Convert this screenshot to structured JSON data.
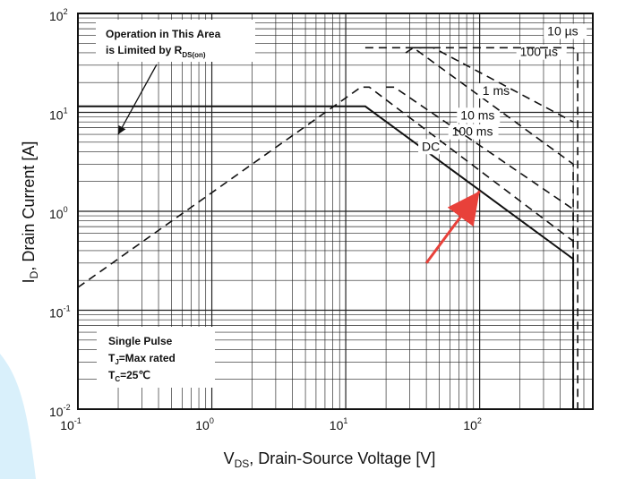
{
  "chart_data": {
    "type": "line",
    "title": "",
    "xlabel": {
      "prefix": "V",
      "sub": "DS",
      "suffix": ", Drain-Source Voltage [V]"
    },
    "ylabel": {
      "prefix": "I",
      "sub": "D",
      "suffix": ", Drain Current [A]"
    },
    "x_scale": "log",
    "y_scale": "log",
    "xlim": [
      0.1,
      700
    ],
    "ylim": [
      0.01,
      100
    ],
    "grid": true,
    "x_ticks": [
      {
        "value": 0.1,
        "base": "10",
        "exp": "-1"
      },
      {
        "value": 1,
        "base": "10",
        "exp": "0"
      },
      {
        "value": 10,
        "base": "10",
        "exp": "1"
      },
      {
        "value": 100,
        "base": "10",
        "exp": "2"
      }
    ],
    "y_ticks": [
      {
        "value": 0.01,
        "base": "10",
        "exp": "-2"
      },
      {
        "value": 0.1,
        "base": "10",
        "exp": "-1"
      },
      {
        "value": 1,
        "base": "10",
        "exp": "0"
      },
      {
        "value": 10,
        "base": "10",
        "exp": "1"
      },
      {
        "value": 100,
        "base": "10",
        "exp": "2"
      }
    ],
    "series": [
      {
        "name": "DC",
        "style": "solid",
        "points": [
          [
            0.1,
            11.5
          ],
          [
            14,
            11.5
          ],
          [
            500,
            0.33
          ],
          [
            500,
            0.01
          ]
        ],
        "label_at": [
          37,
          4.1
        ]
      },
      {
        "name": "100 ms",
        "style": "dashed",
        "points": [
          [
            0.1,
            0.17
          ],
          [
            13,
            18
          ],
          [
            15,
            18
          ],
          [
            500,
            0.5
          ]
        ],
        "label_at": [
          62,
          5.8
        ]
      },
      {
        "name": "10 ms",
        "style": "dashed",
        "points": [
          [
            20,
            18
          ],
          [
            23,
            18
          ],
          [
            500,
            1.05
          ],
          [
            500,
            0.01
          ]
        ],
        "label_at": [
          72,
          8.5
        ]
      },
      {
        "name": "1 ms",
        "style": "dashed",
        "points": [
          [
            28,
            40
          ],
          [
            32,
            45
          ],
          [
            500,
            3
          ],
          [
            500,
            0.01
          ]
        ],
        "label_at": [
          105,
          15
        ]
      },
      {
        "name": "100 µs",
        "style": "dashed",
        "points": [
          [
            32,
            45
          ],
          [
            45,
            45
          ],
          [
            500,
            8
          ]
        ],
        "label_at": [
          200,
          37
        ]
      },
      {
        "name": "10 µs",
        "style": "dashed",
        "points": [
          [
            14,
            45
          ],
          [
            500,
            45
          ],
          [
            540,
            40
          ],
          [
            540,
            0.01
          ]
        ],
        "label_at": [
          320,
          60
        ]
      }
    ],
    "annotations": [
      {
        "lines": [
          "Operation in This Area",
          "is Limited by R"
        ],
        "sub": "DS(on)",
        "placement": "top-left",
        "arrow_to": [
          0.2,
          6
        ]
      },
      {
        "lines": [
          "Single Pulse",
          "T",
          "T"
        ],
        "subs": [
          "",
          "J",
          "C"
        ],
        "suffixes": [
          "",
          "=Max rated",
          "=25℃"
        ],
        "placement": "bottom-left"
      }
    ],
    "highlight_arrow": {
      "color": "#e8413a",
      "from": [
        40,
        0.3
      ],
      "to": [
        100,
        1.6
      ]
    },
    "colors": {
      "line": "#111111",
      "grid": "#222222",
      "background_accent": "#d9f0fb"
    }
  }
}
